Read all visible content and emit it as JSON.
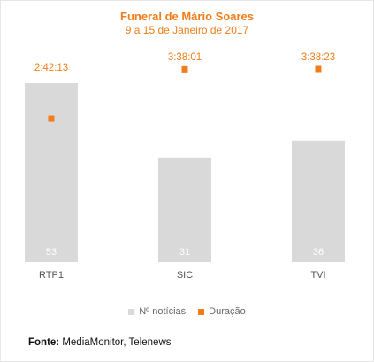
{
  "chart_data": {
    "type": "bar",
    "title": "Funeral de Mário Soares",
    "subtitle": "9 a 15 de Janeiro de 2017",
    "categories": [
      "RTP1",
      "SIC",
      "TVI"
    ],
    "series": [
      {
        "name": "Nº notícias",
        "type": "bar",
        "values": [
          53,
          31,
          36
        ],
        "labels": [
          "53",
          "31",
          "36"
        ],
        "color": "#d9d9d9"
      },
      {
        "name": "Duração",
        "type": "scatter",
        "values_seconds": [
          9733,
          13081,
          13103
        ],
        "labels": [
          "2:42:13",
          "3:38:01",
          "3:38:23"
        ],
        "color": "#f07d1a"
      }
    ],
    "grid": false,
    "legend_position": "bottom"
  },
  "legend": {
    "items": [
      {
        "label": "Nº notícias",
        "color": "#d9d9d9"
      },
      {
        "label": "Duração",
        "color": "#f07d1a"
      }
    ]
  },
  "source": {
    "label": "Fonte:",
    "text": " MediaMonitor, Telenews"
  }
}
